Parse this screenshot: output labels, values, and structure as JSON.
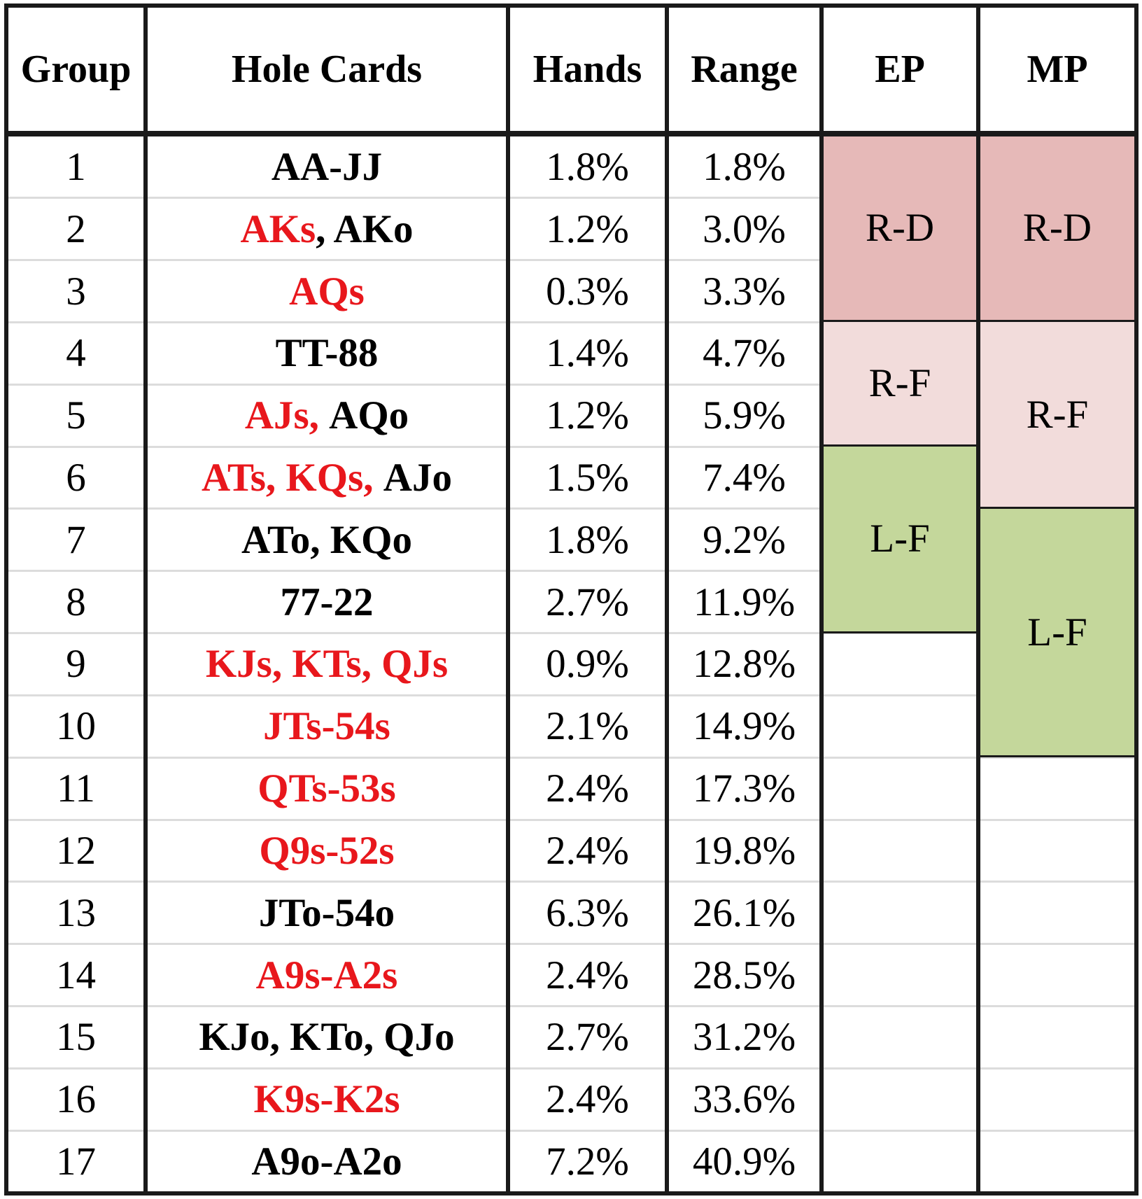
{
  "table": {
    "columns": [
      "Group",
      "Hole Cards",
      "Hands",
      "Range",
      "EP",
      "MP"
    ],
    "rows": [
      {
        "group": "1",
        "hole_cards": [
          {
            "text": "AA-JJ",
            "color": "#000000"
          }
        ],
        "hands": "1.8%",
        "range": "1.8%"
      },
      {
        "group": "2",
        "hole_cards": [
          {
            "text": "AKs",
            "color": "#e8171c"
          },
          {
            "text": ", AKo",
            "color": "#000000"
          }
        ],
        "hands": "1.2%",
        "range": "3.0%"
      },
      {
        "group": "3",
        "hole_cards": [
          {
            "text": "AQs",
            "color": "#e8171c"
          }
        ],
        "hands": "0.3%",
        "range": "3.3%"
      },
      {
        "group": "4",
        "hole_cards": [
          {
            "text": "TT-88",
            "color": "#000000"
          }
        ],
        "hands": "1.4%",
        "range": "4.7%"
      },
      {
        "group": "5",
        "hole_cards": [
          {
            "text": "AJs, ",
            "color": "#e8171c"
          },
          {
            "text": "AQo",
            "color": "#000000"
          }
        ],
        "hands": "1.2%",
        "range": "5.9%"
      },
      {
        "group": "6",
        "hole_cards": [
          {
            "text": "ATs, KQs, ",
            "color": "#e8171c"
          },
          {
            "text": "AJo",
            "color": "#000000"
          }
        ],
        "hands": "1.5%",
        "range": "7.4%"
      },
      {
        "group": "7",
        "hole_cards": [
          {
            "text": "ATo, KQo",
            "color": "#000000"
          }
        ],
        "hands": "1.8%",
        "range": "9.2%"
      },
      {
        "group": "8",
        "hole_cards": [
          {
            "text": "77-22",
            "color": "#000000"
          }
        ],
        "hands": "2.7%",
        "range": "11.9%"
      },
      {
        "group": "9",
        "hole_cards": [
          {
            "text": "KJs, KTs, QJs",
            "color": "#e8171c"
          }
        ],
        "hands": "0.9%",
        "range": "12.8%"
      },
      {
        "group": "10",
        "hole_cards": [
          {
            "text": "JTs-54s",
            "color": "#e8171c"
          }
        ],
        "hands": "2.1%",
        "range": "14.9%"
      },
      {
        "group": "11",
        "hole_cards": [
          {
            "text": "QTs-53s",
            "color": "#e8171c"
          }
        ],
        "hands": "2.4%",
        "range": "17.3%"
      },
      {
        "group": "12",
        "hole_cards": [
          {
            "text": "Q9s-52s",
            "color": "#e8171c"
          }
        ],
        "hands": "2.4%",
        "range": "19.8%"
      },
      {
        "group": "13",
        "hole_cards": [
          {
            "text": "JTo-54o",
            "color": "#000000"
          }
        ],
        "hands": "6.3%",
        "range": "26.1%"
      },
      {
        "group": "14",
        "hole_cards": [
          {
            "text": "A9s-A2s",
            "color": "#e8171c"
          }
        ],
        "hands": "2.4%",
        "range": "28.5%"
      },
      {
        "group": "15",
        "hole_cards": [
          {
            "text": "KJo, KTo, QJo",
            "color": "#000000"
          }
        ],
        "hands": "2.7%",
        "range": "31.2%"
      },
      {
        "group": "16",
        "hole_cards": [
          {
            "text": "K9s-K2s",
            "color": "#e8171c"
          }
        ],
        "hands": "2.4%",
        "range": "33.6%"
      },
      {
        "group": "17",
        "hole_cards": [
          {
            "text": "A9o-A2o",
            "color": "#000000"
          }
        ],
        "hands": "7.2%",
        "range": "40.9%"
      }
    ],
    "ep": [
      {
        "action": "R-D",
        "span": 3,
        "color": "#e6b9b8"
      },
      {
        "action": "R-F",
        "span": 2,
        "color": "#f2dcdb"
      },
      {
        "action": "L-F",
        "span": 3,
        "color": "#c4d79b"
      }
    ],
    "mp": [
      {
        "action": "R-D",
        "span": 3,
        "color": "#e6b9b8"
      },
      {
        "action": "R-F",
        "span": 3,
        "color": "#f2dcdb"
      },
      {
        "action": "L-F",
        "span": 4,
        "color": "#c4d79b"
      }
    ]
  }
}
